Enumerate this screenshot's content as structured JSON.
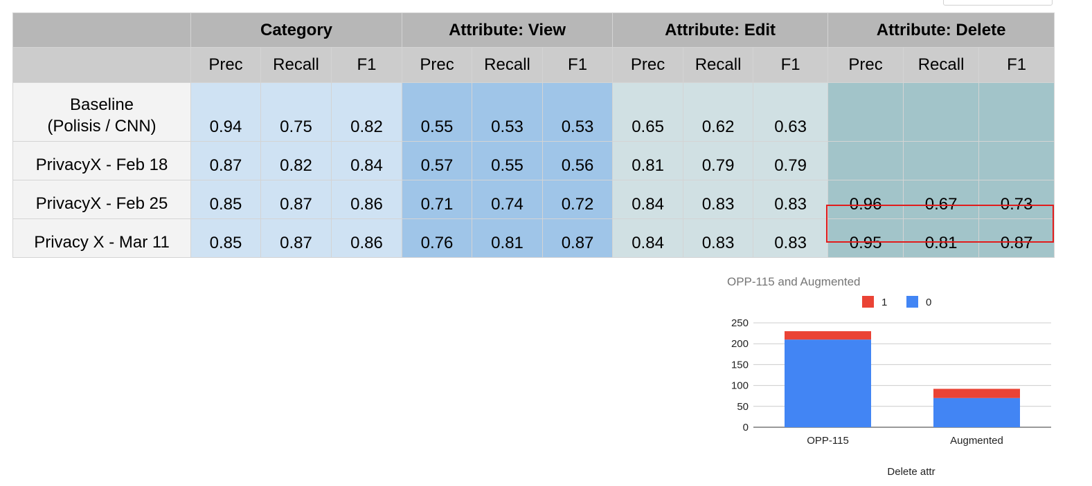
{
  "table": {
    "groups": [
      "",
      "Category",
      "Attribute: View",
      "Attribute: Edit",
      "Attribute: Delete"
    ],
    "subheaders": [
      "Prec",
      "Recall",
      "F1"
    ],
    "rows": [
      {
        "label": "Baseline\n(Polisis / CNN)",
        "values": [
          "0.94",
          "0.75",
          "0.82",
          "0.55",
          "0.53",
          "0.53",
          "0.65",
          "0.62",
          "0.63",
          "",
          "",
          ""
        ],
        "bold": [
          true,
          false,
          false,
          false,
          false,
          false,
          false,
          false,
          false,
          false,
          false,
          false
        ]
      },
      {
        "label": "PrivacyX - Feb 18",
        "values": [
          "0.87",
          "0.82",
          "0.84",
          "0.57",
          "0.55",
          "0.56",
          "0.81",
          "0.79",
          "0.79",
          "",
          "",
          ""
        ],
        "bold": [
          false,
          false,
          false,
          false,
          false,
          false,
          false,
          false,
          false,
          false,
          false,
          false
        ]
      },
      {
        "label": "PrivacyX - Feb 25",
        "values": [
          "0.85",
          "0.87",
          "0.86",
          "0.71",
          "0.74",
          "0.72",
          "0.84",
          "0.83",
          "0.83",
          "0.96",
          "0.67",
          "0.73"
        ],
        "bold": [
          false,
          false,
          false,
          false,
          false,
          false,
          false,
          false,
          false,
          true,
          false,
          false
        ]
      },
      {
        "label": "Privacy X - Mar 11",
        "values": [
          "0.85",
          "0.87",
          "0.86",
          "0.76",
          "0.81",
          "0.87",
          "0.84",
          "0.83",
          "0.83",
          "0.95",
          "0.81",
          "0.87"
        ],
        "bold": [
          false,
          true,
          true,
          true,
          true,
          true,
          true,
          true,
          true,
          false,
          true,
          true
        ]
      }
    ],
    "group_colors": {
      "Category": "#cfe2f3",
      "Attribute: View": "#9fc5e8",
      "Attribute: Edit": "#d0e0e3",
      "Attribute: Delete": "#a2c4c9"
    },
    "highlight_color": "#e11b1b"
  },
  "chart_data": {
    "type": "bar",
    "stacked": true,
    "title": "OPP-115 and Augmented",
    "xlabel": "Delete attr",
    "ylabel": "",
    "categories": [
      "OPP-115",
      "Augmented"
    ],
    "series": [
      {
        "name": "0",
        "values": [
          210,
          70
        ],
        "color": "#4285f4"
      },
      {
        "name": "1",
        "values": [
          20,
          22
        ],
        "color": "#ea4335"
      }
    ],
    "legend_order": [
      "1",
      "0"
    ],
    "legend_position": "top",
    "ylim": [
      0,
      250
    ],
    "yticks": [
      0,
      50,
      100,
      150,
      200,
      250
    ],
    "grid": true
  }
}
